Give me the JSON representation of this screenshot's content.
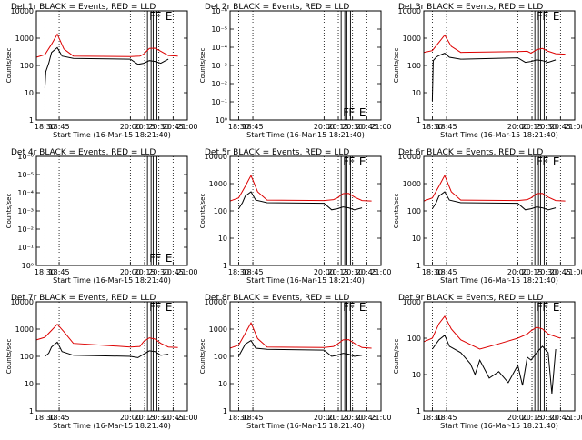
{
  "page": {
    "ylabel": "Counts/sec",
    "xlabel": "Start Time (16-Mar-15 18:21:40)",
    "flag_F": "F",
    "flag_E": "E",
    "colors": {
      "events": "#000000",
      "lld": "#dd0000",
      "axes": "#000000"
    }
  },
  "chart_data": [
    {
      "type": "line",
      "title": "Det 1r BLACK = Events, RED = LLD",
      "xlabel": "Start Time (16-Mar-15 18:21:40)",
      "ylabel": "Counts/sec",
      "yscale": "log",
      "yticks": [
        "1",
        "10",
        "100",
        "1000",
        "10000"
      ],
      "ylim": [
        1,
        10000
      ],
      "xticks": [
        "18:30",
        "18:45",
        "20:00",
        "20:15",
        "20:30",
        "20:45",
        "21:00"
      ],
      "xlim": [
        "18:21",
        "21:00"
      ],
      "flags": [
        {
          "label": "F",
          "time": "20:18"
        },
        {
          "label": "F",
          "time": "20:24"
        },
        {
          "label": "E",
          "time": "20:35"
        }
      ],
      "series": [
        {
          "name": "LLD",
          "color": "#dd0000",
          "x": [
            "18:21",
            "18:30",
            "18:37",
            "18:43",
            "18:50",
            "19:00",
            "20:00",
            "20:10",
            "20:14",
            "20:20",
            "20:26",
            "20:32",
            "20:40",
            "20:50"
          ],
          "y": [
            200,
            250,
            600,
            1400,
            400,
            220,
            210,
            220,
            260,
            420,
            430,
            330,
            230,
            220
          ]
        },
        {
          "name": "Events",
          "color": "#000000",
          "x": [
            "18:30",
            "18:31",
            "18:34",
            "18:37",
            "18:43",
            "18:48",
            "19:00",
            "20:00",
            "20:08",
            "20:14",
            "20:20",
            "20:26",
            "20:32",
            "20:40"
          ],
          "y": [
            15,
            60,
            120,
            300,
            450,
            220,
            180,
            170,
            110,
            120,
            150,
            140,
            120,
            170
          ]
        }
      ]
    },
    {
      "type": "line",
      "title": "Det 2r BLACK = Events, RED = LLD",
      "xlabel": "Start Time (16-Mar-15 18:21:40)",
      "ylabel": "Counts/sec",
      "yscale": "log",
      "yticks": [
        "10⁰",
        "10⁻¹",
        "10⁻²",
        "10⁻³",
        "10⁻⁴",
        "10⁻⁵",
        "10⁻⁶"
      ],
      "ylim": [
        1,
        1e-06
      ],
      "xticks": [
        "18:30",
        "18:45",
        "20:00",
        "20:15",
        "20:30",
        "20:45",
        "21:00"
      ],
      "xlim": [
        "18:21",
        "21:00"
      ],
      "flags": [
        {
          "label": "F",
          "time": "20:18"
        },
        {
          "label": "F",
          "time": "20:24"
        },
        {
          "label": "E",
          "time": "20:35"
        }
      ],
      "series": []
    },
    {
      "type": "line",
      "title": "Det 3r BLACK = Events, RED = LLD",
      "xlabel": "Start Time (16-Mar-15 18:21:40)",
      "ylabel": "Counts/sec",
      "yscale": "log",
      "yticks": [
        "1",
        "10",
        "100",
        "1000",
        "10000"
      ],
      "ylim": [
        1,
        10000
      ],
      "xticks": [
        "18:30",
        "18:45",
        "20:00",
        "20:15",
        "20:30",
        "20:45",
        "21:00"
      ],
      "xlim": [
        "18:21",
        "21:00"
      ],
      "flags": [
        {
          "label": "F",
          "time": "20:18"
        },
        {
          "label": "F",
          "time": "20:24"
        },
        {
          "label": "E",
          "time": "20:35"
        }
      ],
      "series": [
        {
          "name": "LLD",
          "color": "#dd0000",
          "x": [
            "18:21",
            "18:30",
            "18:37",
            "18:43",
            "18:50",
            "19:00",
            "20:00",
            "20:10",
            "20:14",
            "20:20",
            "20:26",
            "20:32",
            "20:40",
            "20:50"
          ],
          "y": [
            300,
            350,
            700,
            1300,
            500,
            300,
            320,
            330,
            280,
            380,
            420,
            330,
            270,
            260
          ]
        },
        {
          "name": "Events",
          "color": "#000000",
          "x": [
            "18:30",
            "18:31",
            "18:34",
            "18:37",
            "18:43",
            "18:48",
            "19:00",
            "20:00",
            "20:08",
            "20:14",
            "20:20",
            "20:26",
            "20:32",
            "20:40"
          ],
          "y": [
            5,
            150,
            200,
            230,
            280,
            200,
            170,
            190,
            130,
            140,
            160,
            150,
            130,
            160
          ]
        }
      ]
    },
    {
      "type": "line",
      "title": "Det 4r BLACK = Events, RED = LLD",
      "xlabel": "Start Time (16-Mar-15 18:21:40)",
      "ylabel": "Counts/sec",
      "yscale": "log",
      "yticks": [
        "10⁰",
        "10⁻¹",
        "10⁻²",
        "10⁻³",
        "10⁻⁴",
        "10⁻⁵",
        "10⁻⁶"
      ],
      "ylim": [
        1,
        1e-06
      ],
      "xticks": [
        "18:30",
        "18:45",
        "20:00",
        "20:15",
        "20:30",
        "20:45",
        "21:00"
      ],
      "xlim": [
        "18:21",
        "21:00"
      ],
      "flags": [
        {
          "label": "F",
          "time": "20:18"
        },
        {
          "label": "F",
          "time": "20:24"
        },
        {
          "label": "E",
          "time": "20:35"
        }
      ],
      "series": []
    },
    {
      "type": "line",
      "title": "Det 5r BLACK = Events, RED = LLD",
      "xlabel": "Start Time (16-Mar-15 18:21:40)",
      "ylabel": "Counts/sec",
      "yscale": "log",
      "yticks": [
        "1",
        "10",
        "100",
        "1000",
        "10000"
      ],
      "ylim": [
        1,
        10000
      ],
      "xticks": [
        "18:30",
        "18:45",
        "20:00",
        "20:15",
        "20:30",
        "20:45",
        "21:00"
      ],
      "xlim": [
        "18:21",
        "21:00"
      ],
      "flags": [
        {
          "label": "F",
          "time": "20:18"
        },
        {
          "label": "F",
          "time": "20:24"
        },
        {
          "label": "E",
          "time": "20:35"
        }
      ],
      "series": [
        {
          "name": "LLD",
          "color": "#dd0000",
          "x": [
            "18:21",
            "18:30",
            "18:37",
            "18:43",
            "18:50",
            "19:00",
            "20:00",
            "20:10",
            "20:14",
            "20:20",
            "20:26",
            "20:32",
            "20:40",
            "20:50"
          ],
          "y": [
            230,
            300,
            800,
            2000,
            500,
            250,
            240,
            260,
            300,
            430,
            440,
            320,
            240,
            230
          ]
        },
        {
          "name": "Events",
          "color": "#000000",
          "x": [
            "18:30",
            "18:34",
            "18:37",
            "18:43",
            "18:48",
            "19:00",
            "20:00",
            "20:08",
            "20:14",
            "20:20",
            "20:26",
            "20:32",
            "20:40"
          ],
          "y": [
            120,
            200,
            350,
            500,
            250,
            200,
            190,
            110,
            120,
            140,
            130,
            110,
            130
          ]
        }
      ]
    },
    {
      "type": "line",
      "title": "Det 6r BLACK = Events, RED = LLD",
      "xlabel": "Start Time (16-Mar-15 18:21:40)",
      "ylabel": "Counts/sec",
      "yscale": "log",
      "yticks": [
        "1",
        "10",
        "100",
        "1000",
        "10000"
      ],
      "ylim": [
        1,
        10000
      ],
      "xticks": [
        "18:30",
        "18:45",
        "20:00",
        "20:15",
        "20:30",
        "20:45",
        "21:00"
      ],
      "xlim": [
        "18:21",
        "21:00"
      ],
      "flags": [
        {
          "label": "F",
          "time": "20:18"
        },
        {
          "label": "F",
          "time": "20:24"
        },
        {
          "label": "E",
          "time": "20:35"
        }
      ],
      "series": [
        {
          "name": "LLD",
          "color": "#dd0000",
          "x": [
            "18:21",
            "18:30",
            "18:37",
            "18:43",
            "18:50",
            "19:00",
            "20:00",
            "20:10",
            "20:14",
            "20:20",
            "20:26",
            "20:32",
            "20:40",
            "20:50"
          ],
          "y": [
            230,
            300,
            800,
            2000,
            500,
            250,
            240,
            260,
            300,
            430,
            440,
            320,
            240,
            230
          ]
        },
        {
          "name": "Events",
          "color": "#000000",
          "x": [
            "18:30",
            "18:34",
            "18:37",
            "18:43",
            "18:48",
            "19:00",
            "20:00",
            "20:08",
            "20:14",
            "20:20",
            "20:26",
            "20:32",
            "20:40"
          ],
          "y": [
            120,
            200,
            350,
            500,
            250,
            200,
            190,
            110,
            120,
            140,
            130,
            110,
            130
          ]
        }
      ]
    },
    {
      "type": "line",
      "title": "Det 7r BLACK = Events, RED = LLD",
      "xlabel": "Start Time (16-Mar-15 18:21:40)",
      "ylabel": "Counts/sec",
      "yscale": "log",
      "yticks": [
        "1",
        "10",
        "100",
        "1000",
        "10000"
      ],
      "ylim": [
        1,
        10000
      ],
      "xticks": [
        "18:30",
        "18:45",
        "20:00",
        "20:15",
        "20:30",
        "20:45",
        "21:00"
      ],
      "xlim": [
        "18:21",
        "21:00"
      ],
      "flags": [
        {
          "label": "F",
          "time": "20:18"
        },
        {
          "label": "F",
          "time": "20:24"
        },
        {
          "label": "E",
          "time": "20:35"
        }
      ],
      "series": [
        {
          "name": "LLD",
          "color": "#dd0000",
          "x": [
            "18:21",
            "18:30",
            "18:37",
            "18:43",
            "18:50",
            "19:00",
            "20:00",
            "20:10",
            "20:14",
            "20:20",
            "20:26",
            "20:32",
            "20:40",
            "20:50"
          ],
          "y": [
            400,
            500,
            900,
            1500,
            800,
            300,
            220,
            230,
            350,
            480,
            430,
            300,
            220,
            210
          ]
        },
        {
          "name": "Events",
          "color": "#000000",
          "x": [
            "18:30",
            "18:34",
            "18:37",
            "18:43",
            "18:48",
            "19:00",
            "20:00",
            "20:08",
            "20:14",
            "20:20",
            "20:26",
            "20:32",
            "20:40"
          ],
          "y": [
            100,
            130,
            220,
            330,
            150,
            110,
            100,
            90,
            120,
            160,
            150,
            110,
            120
          ]
        }
      ]
    },
    {
      "type": "line",
      "title": "Det 8r BLACK = Events, RED = LLD",
      "xlabel": "Start Time (16-Mar-15 18:21:40)",
      "ylabel": "Counts/sec",
      "yscale": "log",
      "yticks": [
        "1",
        "10",
        "100",
        "1000",
        "10000"
      ],
      "ylim": [
        1,
        10000
      ],
      "xticks": [
        "18:30",
        "18:45",
        "20:00",
        "20:15",
        "20:30",
        "20:45",
        "21:00"
      ],
      "xlim": [
        "18:21",
        "21:00"
      ],
      "flags": [
        {
          "label": "F",
          "time": "20:18"
        },
        {
          "label": "F",
          "time": "20:24"
        },
        {
          "label": "E",
          "time": "20:35"
        }
      ],
      "series": [
        {
          "name": "LLD",
          "color": "#dd0000",
          "x": [
            "18:21",
            "18:30",
            "18:37",
            "18:43",
            "18:50",
            "19:00",
            "20:00",
            "20:10",
            "20:14",
            "20:20",
            "20:26",
            "20:32",
            "20:40",
            "20:50"
          ],
          "y": [
            200,
            260,
            700,
            1700,
            450,
            220,
            210,
            230,
            280,
            400,
            410,
            300,
            210,
            200
          ]
        },
        {
          "name": "Events",
          "color": "#000000",
          "x": [
            "18:30",
            "18:34",
            "18:37",
            "18:43",
            "18:48",
            "19:00",
            "20:00",
            "20:08",
            "20:14",
            "20:20",
            "20:26",
            "20:32",
            "20:40"
          ],
          "y": [
            100,
            180,
            280,
            380,
            200,
            180,
            170,
            100,
            110,
            130,
            120,
            100,
            110
          ]
        }
      ]
    },
    {
      "type": "line",
      "title": "Det 9r BLACK = Events, RED = LLD",
      "xlabel": "Start Time (16-Mar-15 18:21:40)",
      "ylabel": "Counts/sec",
      "yscale": "log",
      "yticks": [
        "1",
        "10",
        "100",
        "1000"
      ],
      "ylim": [
        1,
        1000
      ],
      "xticks": [
        "18:30",
        "18:45",
        "20:00",
        "20:15",
        "20:30",
        "20:45",
        "21:00"
      ],
      "xlim": [
        "18:21",
        "21:00"
      ],
      "flags": [
        {
          "label": "F",
          "time": "20:18"
        },
        {
          "label": "F",
          "time": "20:24"
        },
        {
          "label": "E",
          "time": "20:35"
        }
      ],
      "series": [
        {
          "name": "LLD",
          "color": "#dd0000",
          "x": [
            "18:21",
            "18:30",
            "18:37",
            "18:43",
            "18:50",
            "19:00",
            "19:20",
            "19:40",
            "20:00",
            "20:10",
            "20:14",
            "20:20",
            "20:26",
            "20:32",
            "20:40",
            "20:45"
          ],
          "y": [
            80,
            100,
            250,
            400,
            180,
            90,
            50,
            70,
            100,
            130,
            160,
            200,
            180,
            130,
            110,
            100
          ]
        },
        {
          "name": "Events",
          "color": "#000000",
          "x": [
            "18:30",
            "18:34",
            "18:37",
            "18:43",
            "18:48",
            "19:00",
            "19:10",
            "19:15",
            "19:20",
            "19:30",
            "19:40",
            "19:50",
            "20:00",
            "20:05",
            "20:10",
            "20:14",
            "20:20",
            "20:26",
            "20:32",
            "20:36",
            "20:40"
          ],
          "y": [
            50,
            70,
            90,
            120,
            60,
            40,
            20,
            10,
            25,
            8,
            12,
            6,
            18,
            5,
            30,
            25,
            40,
            60,
            40,
            3,
            50
          ]
        }
      ]
    }
  ]
}
